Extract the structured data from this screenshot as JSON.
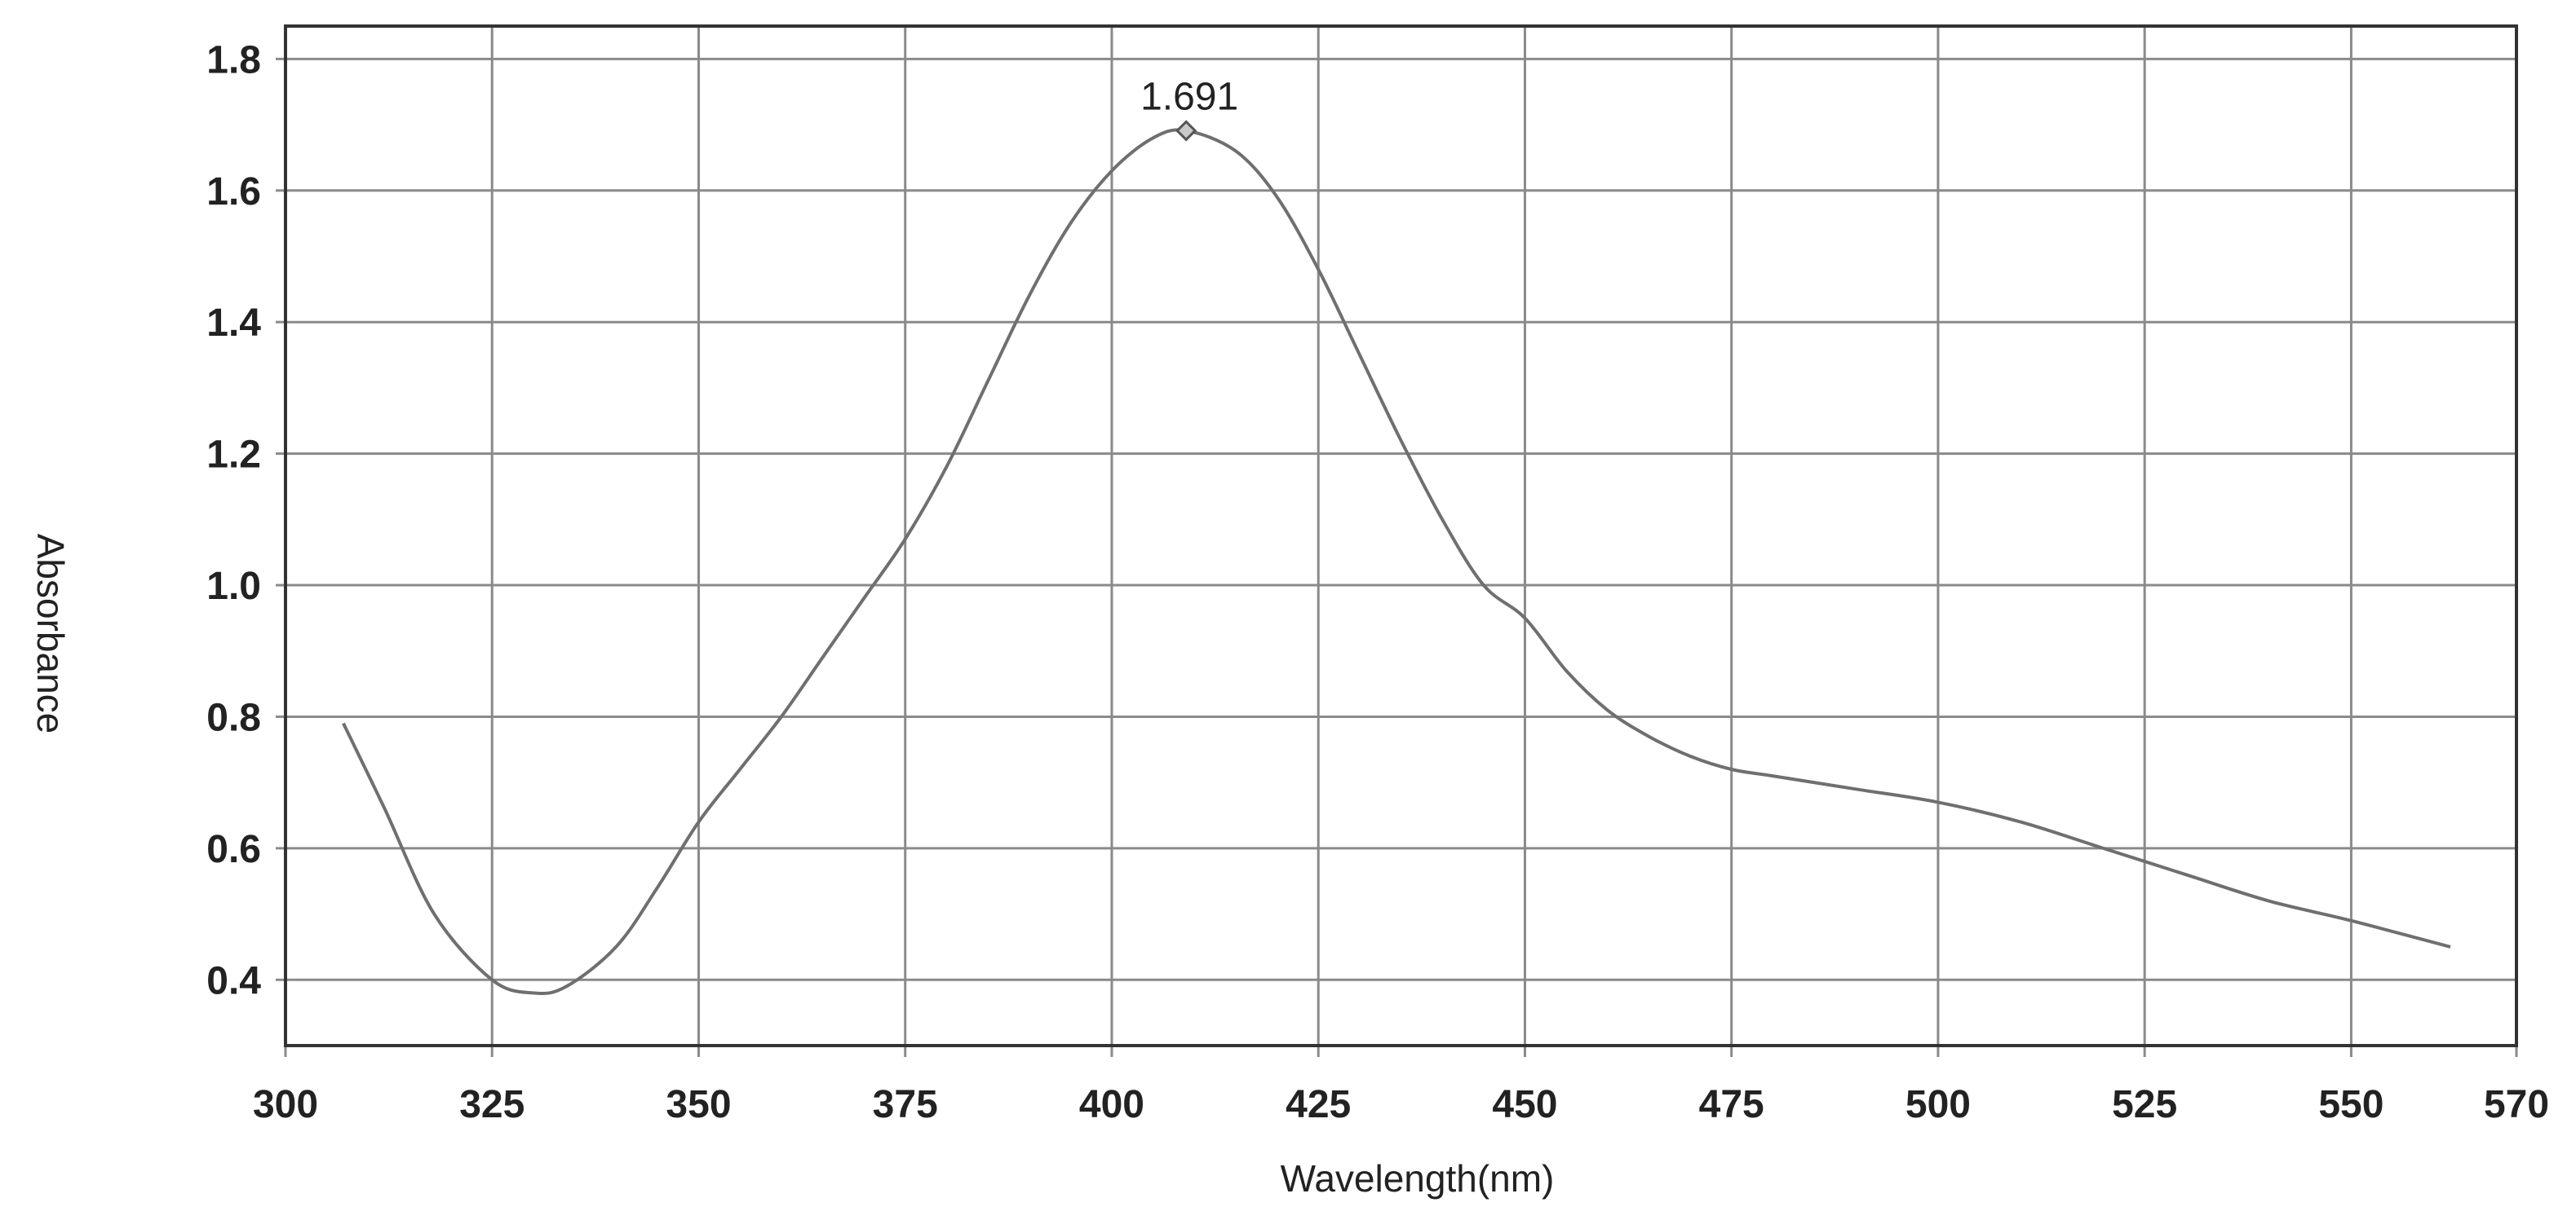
{
  "chart_data": {
    "type": "line",
    "title": "",
    "xlabel": "Wavelength(nm)",
    "ylabel": "Absorbance",
    "xlim": [
      300,
      570
    ],
    "ylim": [
      0.3,
      1.85
    ],
    "x_ticks": [
      300,
      325,
      350,
      375,
      400,
      425,
      450,
      475,
      500,
      525,
      550,
      570
    ],
    "y_ticks": [
      0.4,
      0.6,
      0.8,
      1.0,
      1.2,
      1.4,
      1.6,
      1.8
    ],
    "x_tick_labels": [
      "300",
      "325",
      "350",
      "375",
      "400",
      "425",
      "450",
      "475",
      "500",
      "525",
      "550",
      "570"
    ],
    "y_tick_labels": [
      "0.4",
      "0.6",
      "0.8",
      "1.0",
      "1.2",
      "1.4",
      "1.6",
      "1.8"
    ],
    "grid": true,
    "series": [
      {
        "x": [
          307,
          312,
          318,
          325,
          330,
          334,
          340,
          345,
          350,
          355,
          360,
          365,
          370,
          375,
          380,
          385,
          390,
          395,
          400,
          405,
          409,
          415,
          420,
          425,
          430,
          435,
          440,
          445,
          450,
          455,
          460,
          465,
          470,
          475,
          480,
          490,
          500,
          510,
          520,
          530,
          540,
          550,
          562
        ],
        "y": [
          0.79,
          0.66,
          0.5,
          0.4,
          0.38,
          0.39,
          0.45,
          0.54,
          0.64,
          0.72,
          0.8,
          0.89,
          0.98,
          1.07,
          1.18,
          1.31,
          1.44,
          1.55,
          1.63,
          1.68,
          1.691,
          1.66,
          1.59,
          1.48,
          1.35,
          1.22,
          1.1,
          1.0,
          0.95,
          0.87,
          0.81,
          0.77,
          0.74,
          0.72,
          0.71,
          0.69,
          0.67,
          0.64,
          0.6,
          0.56,
          0.52,
          0.49,
          0.45
        ]
      }
    ],
    "annotations": [
      {
        "text": "1.691",
        "x": 409,
        "y": 1.691
      }
    ]
  }
}
